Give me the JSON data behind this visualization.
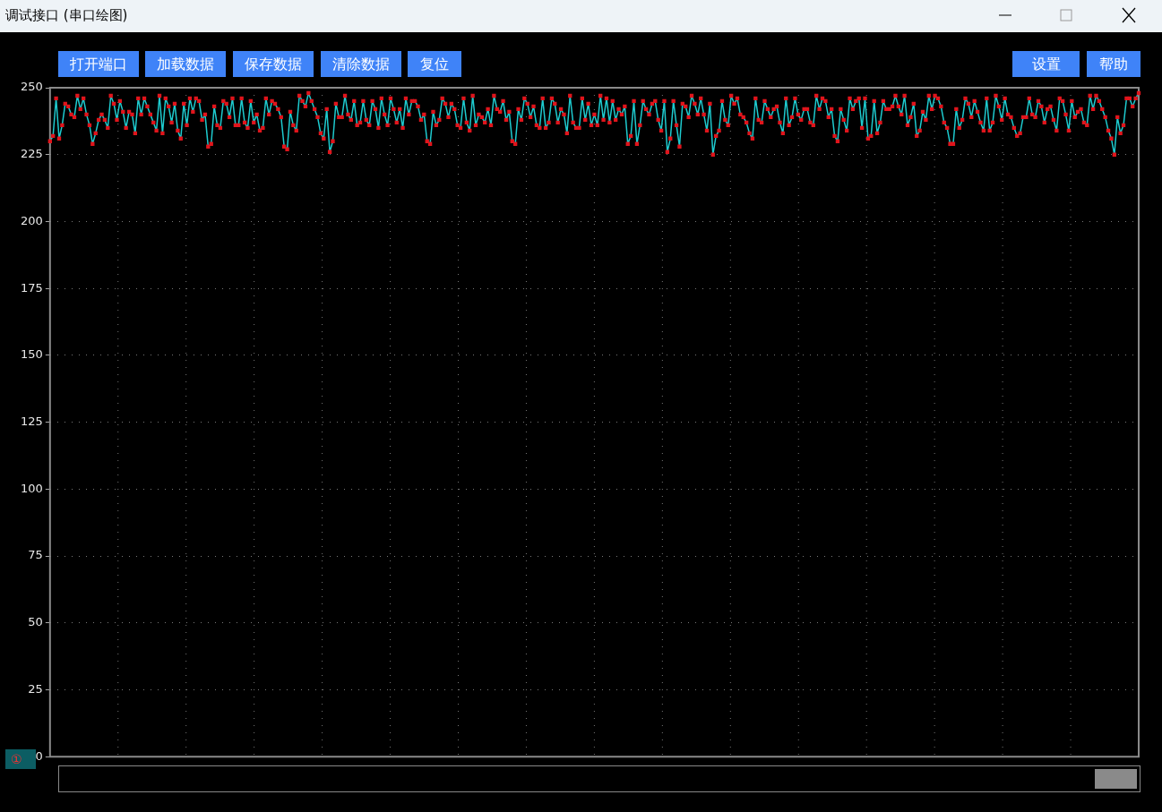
{
  "chart_data": {
    "type": "line",
    "title": "调试接口 (串口绘图)",
    "annotations": [
      "打开端口",
      "加载数据",
      "保存数据",
      "清除数据",
      "复位",
      "设置",
      "帮助",
      "①"
    ],
    "categories": [
      null,
      null,
      null,
      null,
      null,
      null,
      null,
      null,
      null,
      null,
      null,
      null,
      null,
      null,
      null,
      null,
      null,
      null,
      null,
      null,
      null,
      null,
      null,
      null,
      null,
      null,
      null,
      null,
      null,
      null,
      null,
      null,
      null,
      null,
      null,
      null,
      null,
      null,
      null,
      null,
      null,
      null,
      null,
      null,
      null,
      null,
      null,
      null,
      null,
      null,
      null,
      null,
      null,
      null,
      null,
      null,
      null,
      null,
      null,
      null,
      null,
      null,
      null,
      null,
      null,
      null,
      null,
      null,
      null,
      null,
      null,
      null,
      null,
      null,
      null,
      null,
      null,
      null,
      null,
      null,
      null,
      null,
      null,
      null,
      null,
      null,
      null,
      null,
      null,
      null,
      null,
      null,
      null,
      null,
      null,
      null,
      null,
      null,
      null,
      null,
      null,
      null,
      null,
      null,
      null,
      null,
      null,
      null,
      null,
      null,
      null,
      null,
      null,
      null,
      null,
      null,
      null,
      null,
      null,
      null,
      null,
      null,
      null,
      null,
      null,
      null,
      null,
      null,
      null,
      null,
      null,
      null,
      null,
      null,
      null,
      null,
      null,
      null,
      null,
      null,
      null,
      null,
      null,
      null,
      null,
      null,
      null,
      null,
      null,
      null,
      null,
      null,
      null,
      null,
      null,
      null,
      null,
      null,
      null,
      null,
      null,
      null,
      null,
      null,
      null,
      null,
      null,
      null,
      null,
      null,
      null,
      null,
      null,
      null,
      null,
      null,
      null,
      null,
      null,
      null,
      null,
      null,
      null,
      null,
      null,
      null,
      null,
      null,
      null,
      null,
      null,
      null,
      null,
      null,
      null,
      null,
      null,
      null,
      null,
      null,
      null,
      null,
      null,
      null,
      null,
      null,
      null,
      null,
      null,
      null,
      null,
      null,
      null,
      null,
      null,
      null,
      null,
      null,
      null,
      null,
      null,
      null,
      null,
      null,
      null,
      null,
      null,
      null,
      null,
      null,
      null,
      null,
      null,
      null,
      null,
      null,
      null,
      null,
      null,
      null,
      null,
      null,
      null,
      null,
      null,
      null,
      null,
      null,
      null,
      null,
      null,
      null,
      null,
      null,
      null,
      null,
      null,
      null,
      null,
      null,
      null,
      null,
      null,
      null,
      null,
      null,
      null,
      null,
      null,
      null,
      null,
      null,
      null,
      null,
      null,
      null,
      null,
      null,
      null,
      null,
      null,
      null,
      null,
      null,
      null,
      null,
      null,
      null,
      null,
      null,
      null,
      null,
      null,
      null,
      null,
      null,
      null,
      null,
      null,
      null,
      null,
      null,
      null,
      null,
      null,
      null,
      null,
      null,
      null,
      null,
      null,
      null,
      null,
      null,
      null,
      null,
      null,
      null,
      null,
      null,
      null,
      null,
      null,
      null,
      null,
      null,
      null,
      null,
      null,
      null,
      null,
      null,
      null,
      null,
      null,
      null,
      null,
      null,
      null,
      null,
      null,
      null,
      null,
      null,
      null,
      null,
      null,
      null,
      null,
      null,
      null,
      null,
      null,
      null,
      null,
      null,
      null,
      null,
      null
    ],
    "series": [
      {
        "color": "#1ecbcf",
        "values": [
          230,
          232,
          246,
          231,
          236,
          244,
          243,
          240,
          239,
          247,
          242,
          246,
          240,
          236,
          229,
          233,
          238,
          240,
          238,
          235,
          247,
          244,
          238,
          245,
          241,
          235,
          241,
          240,
          233,
          246,
          240,
          246,
          243,
          240,
          237,
          234,
          247,
          233,
          246,
          243,
          237,
          244,
          234,
          231,
          244,
          236,
          246,
          241,
          246,
          245,
          238,
          240,
          228,
          229,
          243,
          236,
          235,
          245,
          244,
          239,
          246,
          236,
          236,
          246,
          237,
          235,
          245,
          237,
          240,
          234,
          235,
          246,
          240,
          245,
          244,
          242,
          239,
          228,
          227,
          241,
          236,
          234,
          247,
          245,
          243,
          248,
          245,
          242,
          239,
          233,
          231,
          242,
          226,
          230,
          244,
          239,
          239,
          247,
          240,
          238,
          245,
          236,
          237,
          245,
          238,
          236,
          245,
          242,
          235,
          246,
          240,
          236,
          246,
          242,
          237,
          242,
          235,
          246,
          240,
          245,
          245,
          243,
          238,
          240,
          230,
          229,
          241,
          236,
          238,
          246,
          244,
          239,
          244,
          242,
          236,
          235,
          246,
          237,
          234,
          247,
          236,
          240,
          239,
          237,
          242,
          236,
          247,
          242,
          241,
          245,
          238,
          241,
          230,
          229,
          242,
          238,
          246,
          244,
          239,
          243,
          236,
          235,
          246,
          235,
          237,
          246,
          244,
          237,
          242,
          240,
          233,
          247,
          237,
          235,
          235,
          246,
          238,
          244,
          236,
          240,
          236,
          247,
          238,
          246,
          237,
          245,
          238,
          242,
          240,
          243,
          229,
          232,
          245,
          229,
          236,
          245,
          242,
          240,
          244,
          245,
          238,
          234,
          245,
          226,
          231,
          245,
          236,
          228,
          244,
          243,
          239,
          247,
          244,
          240,
          246,
          240,
          234,
          244,
          225,
          232,
          234,
          245,
          238,
          236,
          247,
          244,
          246,
          240,
          239,
          237,
          233,
          231,
          246,
          238,
          237,
          245,
          242,
          239,
          242,
          243,
          237,
          233,
          246,
          236,
          239,
          246,
          240,
          238,
          242,
          242,
          237,
          236,
          247,
          242,
          246,
          245,
          239,
          242,
          232,
          230,
          242,
          238,
          234,
          246,
          242,
          245,
          246,
          235,
          246,
          231,
          232,
          245,
          233,
          237,
          245,
          242,
          242,
          243,
          247,
          243,
          240,
          247,
          236,
          239,
          244,
          232,
          234,
          241,
          238,
          247,
          242,
          247,
          246,
          243,
          237,
          235,
          229,
          229,
          242,
          235,
          238,
          246,
          244,
          239,
          245,
          241,
          237,
          234,
          246,
          234,
          237,
          247,
          243,
          238,
          246,
          240,
          239,
          235,
          232,
          233,
          239,
          239,
          246,
          240,
          239,
          245,
          243,
          237,
          242,
          243,
          238,
          234,
          246,
          245,
          240,
          234,
          245,
          239,
          241,
          242,
          237,
          236,
          247,
          242,
          247,
          245,
          242,
          239,
          234,
          231,
          225,
          239,
          233,
          236,
          246,
          246,
          243,
          246,
          248
        ]
      }
    ],
    "ylim": [
      0,
      250
    ],
    "yticks": [
      0,
      25,
      50,
      75,
      100,
      125,
      150,
      175,
      200,
      225,
      250
    ],
    "grid": true,
    "legend": false,
    "marker": "square",
    "line_style": "solid"
  }
}
